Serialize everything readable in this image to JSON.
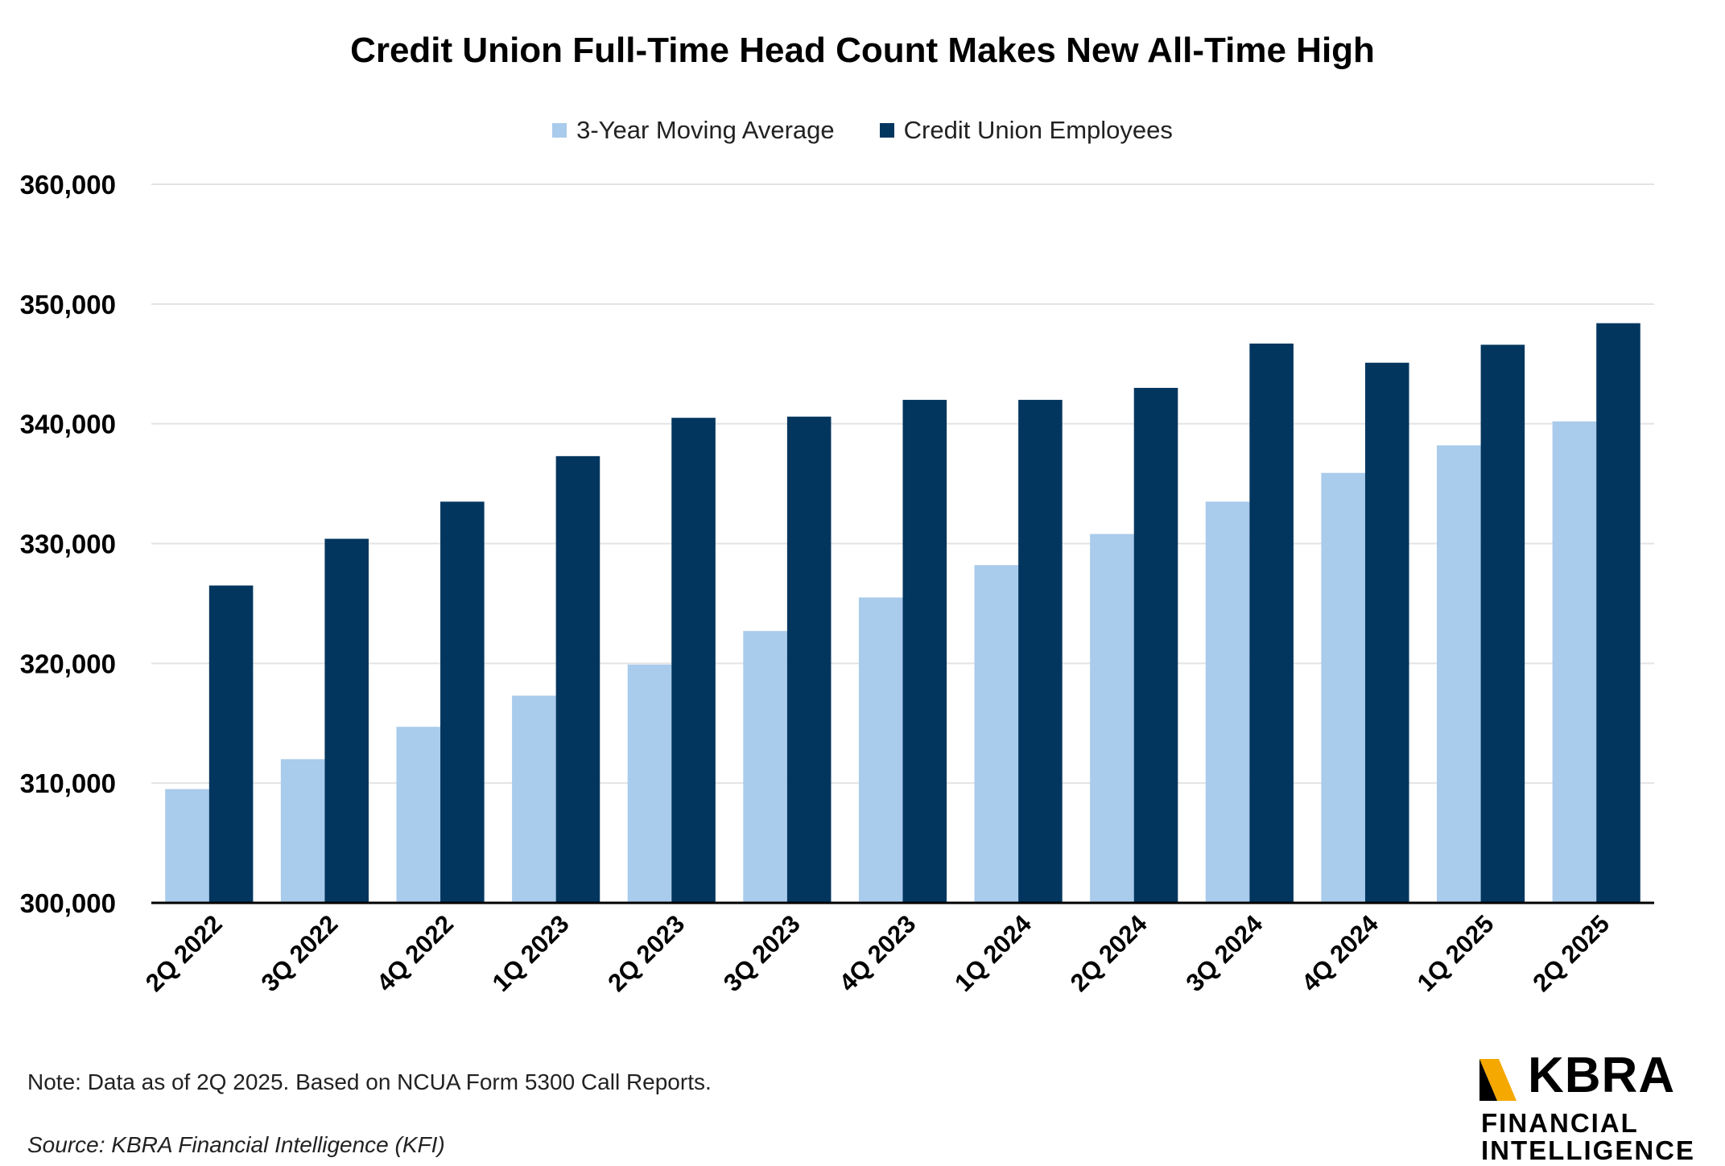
{
  "chart_data": {
    "type": "bar",
    "title": "Credit Union Full-Time Head Count Makes New All-Time High",
    "categories": [
      "2Q 2022",
      "3Q 2022",
      "4Q 2022",
      "1Q 2023",
      "2Q 2023",
      "3Q 2023",
      "4Q 2023",
      "1Q 2024",
      "2Q 2024",
      "3Q 2024",
      "4Q 2024",
      "1Q 2025",
      "2Q 2025"
    ],
    "series": [
      {
        "name": "3-Year Moving Average",
        "color": "#a9cbec",
        "values": [
          309500,
          312000,
          314700,
          317300,
          319900,
          322700,
          325500,
          328200,
          330800,
          333500,
          335900,
          338200,
          340200
        ]
      },
      {
        "name": "Credit Union Employees",
        "color": "#02365f",
        "values": [
          326500,
          330400,
          333500,
          337300,
          340500,
          340600,
          342000,
          342000,
          343000,
          346700,
          345100,
          346600,
          348400
        ]
      }
    ],
    "ylim": [
      300000,
      360000
    ],
    "yticks": [
      "300,000",
      "310,000",
      "320,000",
      "330,000",
      "340,000",
      "350,000",
      "360,000"
    ],
    "ytick_values": [
      300000,
      310000,
      320000,
      330000,
      340000,
      350000,
      360000
    ],
    "legend_position": "top-center",
    "grid": true,
    "xlabel": "",
    "ylabel": ""
  },
  "note": "Note: Data as of 2Q 2025. Based on NCUA Form 5300 Call Reports.",
  "source": "Source: KBRA Financial Intelligence (KFI)",
  "logo": {
    "word": "KBRA",
    "line1": "FINANCIAL",
    "line2": "INTELLIGENCE",
    "accent_color": "#f5a800",
    "text_color": "#000000"
  }
}
